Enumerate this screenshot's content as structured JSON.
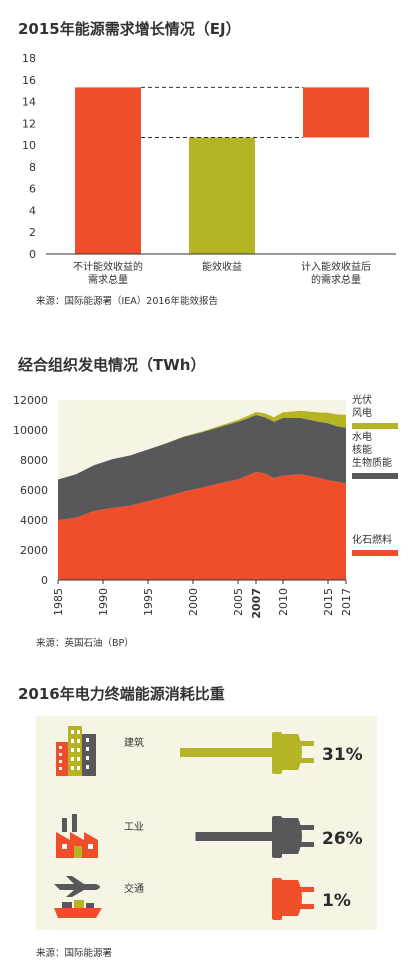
{
  "section1": {
    "title": "2015年能源需求增长情况（EJ）",
    "source": "来源：国际能源署（IEA）2016年能效报告"
  },
  "section2": {
    "title": "经合组织发电情况（TWh）",
    "source": "来源：英国石油（BP）"
  },
  "section3": {
    "title": "2016年电力终端能源消耗比重",
    "source": "来源：国际能源署"
  },
  "chart_data": [
    {
      "type": "bar",
      "title": "2015年能源需求增长情况（EJ）",
      "categories": [
        [
          "不计能效收益的",
          "需求总量"
        ],
        [
          "能效收益"
        ],
        [
          "计入能效收益后",
          "的需求总量"
        ]
      ],
      "bars": [
        {
          "base": 0,
          "top": 15.3,
          "color": "#f04e2a"
        },
        {
          "base": 0,
          "top": 10.7,
          "color": "#b5b425"
        },
        {
          "base": 10.7,
          "top": 15.3,
          "color": "#f04e2a"
        }
      ],
      "ylim": [
        0,
        18
      ],
      "yticks": [
        0,
        2,
        4,
        6,
        8,
        10,
        12,
        14,
        16,
        18
      ],
      "reference_lines": [
        15.3,
        10.7
      ],
      "source": "来源：国际能源署（IEA）2016年能效报告"
    },
    {
      "type": "area",
      "title": "经合组织发电情况（TWh）",
      "x": [
        1985,
        1987,
        1989,
        1991,
        1993,
        1995,
        1997,
        1999,
        2001,
        2003,
        2005,
        2006,
        2007,
        2008,
        2009,
        2010,
        2012,
        2014,
        2015,
        2016,
        2017
      ],
      "xticks": [
        "1985",
        "1990",
        "1995",
        "2000",
        "2005",
        "2007",
        "2010",
        "2015",
        "2017"
      ],
      "xtick_values": [
        1985,
        1990,
        1995,
        2000,
        2005,
        2007,
        2010,
        2015,
        2017
      ],
      "highlight_tick": "2007",
      "ylim": [
        0,
        12000
      ],
      "yticks": [
        0,
        2000,
        4000,
        6000,
        8000,
        10000,
        12000
      ],
      "series": [
        {
          "name": "化石燃料",
          "color": "#f04e2a",
          "values": [
            4000,
            4150,
            4600,
            4800,
            4950,
            5250,
            5550,
            5900,
            6150,
            6450,
            6700,
            6950,
            7200,
            7100,
            6800,
            6950,
            7050,
            6800,
            6650,
            6550,
            6450
          ]
        },
        {
          "name": "水电 核能 生物质能",
          "color": "#58585a",
          "values": [
            2700,
            2900,
            3050,
            3250,
            3350,
            3450,
            3550,
            3650,
            3700,
            3750,
            3850,
            3800,
            3800,
            3750,
            3750,
            3850,
            3750,
            3750,
            3800,
            3700,
            3700
          ]
        },
        {
          "name": "光伏 风电",
          "color": "#b5b425",
          "values": [
            0,
            0,
            0,
            0,
            0,
            0,
            10,
            20,
            50,
            80,
            120,
            160,
            200,
            250,
            300,
            380,
            480,
            620,
            700,
            780,
            860
          ]
        }
      ],
      "legend": [
        {
          "lines": [
            "光伏",
            "风电"
          ],
          "color": "#b5b425"
        },
        {
          "lines": [
            "水电",
            "核能",
            "生物质能"
          ],
          "color": "#58585a"
        },
        {
          "lines": [
            "化石燃料"
          ],
          "color": "#f04e2a"
        }
      ],
      "legend_position": "right",
      "source": "来源：英国石油（BP）"
    },
    {
      "type": "bar",
      "title": "2016年电力终端能源消耗比重",
      "rows": [
        {
          "label": "建筑",
          "value": 31,
          "display": "31%",
          "color": "#b5b425",
          "icon": "building-icon"
        },
        {
          "label": "工业",
          "value": 26,
          "display": "26%",
          "color": "#58585a",
          "icon": "factory-icon"
        },
        {
          "label": "交通",
          "value": 1,
          "display": "1%",
          "color": "#f04e2a",
          "icon": "transport-icon"
        }
      ],
      "source": "来源：国际能源署"
    }
  ]
}
